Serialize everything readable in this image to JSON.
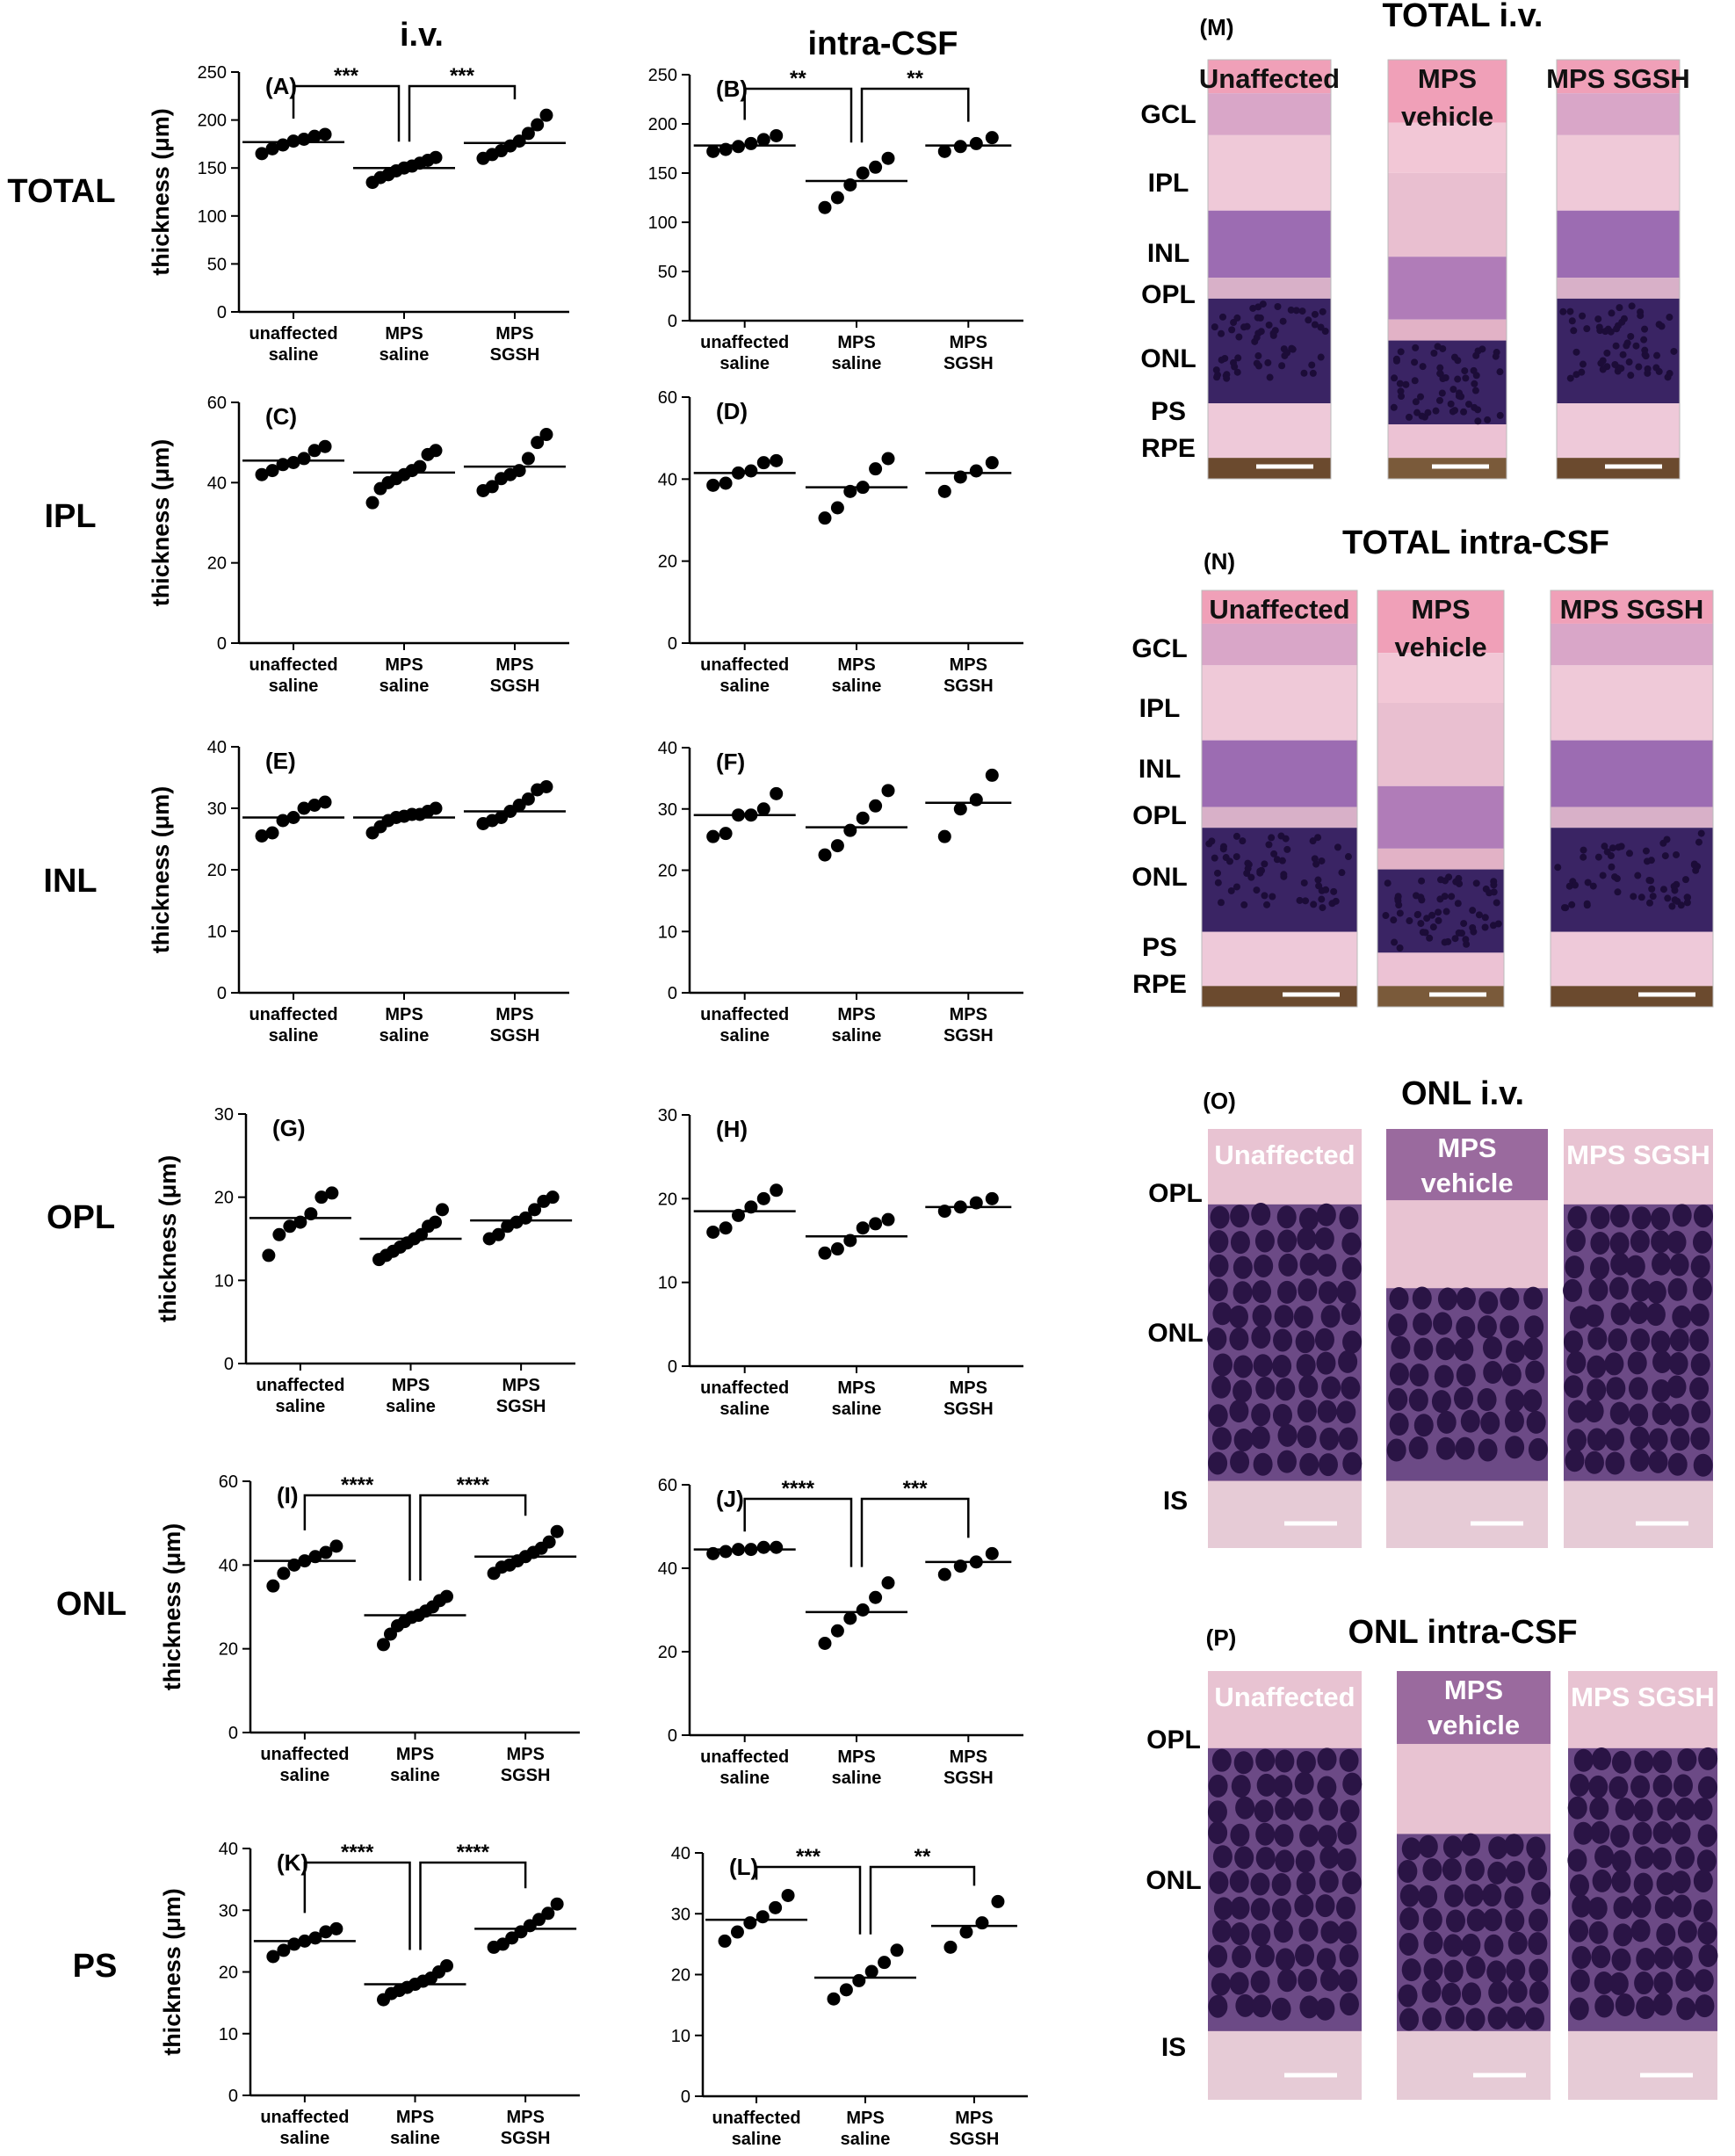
{
  "columns": {
    "iv": "i.v.",
    "csf": "intra-CSF"
  },
  "rows": [
    "TOTAL",
    "IPL",
    "INL",
    "OPL",
    "ONL",
    "PS"
  ],
  "ylabel": "thickness (μm)",
  "categories": [
    [
      "unaffected",
      "saline"
    ],
    [
      "MPS",
      "saline"
    ],
    [
      "MPS",
      "SGSH"
    ]
  ],
  "chart_data": [
    {
      "panel": "(A)",
      "type": "scatter",
      "ylim": [
        0,
        250
      ],
      "ticks": [
        0,
        50,
        100,
        150,
        200,
        250
      ],
      "means": [
        177,
        150,
        176
      ],
      "points": [
        [
          165,
          170,
          174,
          178,
          180,
          183,
          185
        ],
        [
          135,
          140,
          143,
          147,
          150,
          152,
          155,
          158,
          161
        ],
        [
          160,
          164,
          168,
          173,
          178,
          186,
          195,
          205
        ]
      ],
      "sig": [
        "***",
        "***"
      ]
    },
    {
      "panel": "(B)",
      "type": "scatter",
      "ylim": [
        0,
        250
      ],
      "ticks": [
        0,
        50,
        100,
        150,
        200,
        250
      ],
      "means": [
        178,
        142,
        178
      ],
      "points": [
        [
          172,
          174,
          177,
          180,
          184,
          188
        ],
        [
          115,
          125,
          138,
          150,
          156,
          165
        ],
        [
          172,
          177,
          180,
          186
        ]
      ],
      "sig": [
        "**",
        "**"
      ]
    },
    {
      "panel": "(C)",
      "type": "scatter",
      "ylim": [
        0,
        60
      ],
      "ticks": [
        0,
        20,
        40,
        60
      ],
      "means": [
        45.5,
        42.5,
        44
      ],
      "points": [
        [
          42,
          43,
          44.5,
          45,
          46,
          48,
          49
        ],
        [
          35,
          38.5,
          40,
          41,
          42,
          43,
          44,
          47,
          48
        ],
        [
          38,
          39,
          41,
          42,
          43,
          46,
          50,
          52
        ]
      ],
      "sig": []
    },
    {
      "panel": "(D)",
      "type": "scatter",
      "ylim": [
        0,
        60
      ],
      "ticks": [
        0,
        20,
        40,
        60
      ],
      "means": [
        41.5,
        38,
        41.5
      ],
      "points": [
        [
          38.5,
          39,
          41.5,
          42,
          44,
          44.5
        ],
        [
          30.5,
          33,
          37,
          38,
          42.5,
          45
        ],
        [
          37,
          40.5,
          42,
          44
        ]
      ],
      "sig": []
    },
    {
      "panel": "(E)",
      "type": "scatter",
      "ylim": [
        0,
        40
      ],
      "ticks": [
        0,
        10,
        20,
        30,
        40
      ],
      "means": [
        28.5,
        28.5,
        29.5
      ],
      "points": [
        [
          25.5,
          26,
          28,
          28.5,
          30,
          30.5,
          31
        ],
        [
          26,
          27,
          28,
          28.5,
          28.7,
          29,
          29,
          29.5,
          30
        ],
        [
          27.5,
          28,
          28.5,
          29.5,
          30.5,
          31.5,
          33,
          33.5
        ]
      ],
      "sig": []
    },
    {
      "panel": "(F)",
      "type": "scatter",
      "ylim": [
        0,
        40
      ],
      "ticks": [
        0,
        10,
        20,
        30,
        40
      ],
      "means": [
        29,
        27,
        31
      ],
      "points": [
        [
          25.5,
          26,
          29,
          29,
          30,
          32.5
        ],
        [
          22.5,
          24,
          26.5,
          28.5,
          30.5,
          33
        ],
        [
          25.5,
          30,
          31.5,
          35.5
        ]
      ],
      "sig": []
    },
    {
      "panel": "(G)",
      "type": "scatter",
      "ylim": [
        0,
        30
      ],
      "ticks": [
        0,
        10,
        20,
        30
      ],
      "means": [
        17.5,
        15,
        17.2
      ],
      "points": [
        [
          13,
          15.5,
          16.5,
          17,
          18,
          20,
          20.5
        ],
        [
          12.5,
          13,
          13.5,
          14,
          14.5,
          15,
          15.5,
          16.5,
          17,
          18.5
        ],
        [
          15,
          15.5,
          16.5,
          17,
          17.5,
          18.5,
          19.5,
          20
        ]
      ],
      "sig": []
    },
    {
      "panel": "(H)",
      "type": "scatter",
      "ylim": [
        0,
        30
      ],
      "ticks": [
        0,
        10,
        20,
        30
      ],
      "means": [
        18.5,
        15.5,
        19
      ],
      "points": [
        [
          16,
          16.5,
          18,
          19,
          20,
          21
        ],
        [
          13.5,
          14,
          15,
          16.5,
          17,
          17.5
        ],
        [
          18.5,
          19,
          19.5,
          20
        ]
      ],
      "sig": []
    },
    {
      "panel": "(I)",
      "type": "scatter",
      "ylim": [
        0,
        60
      ],
      "ticks": [
        0,
        20,
        40,
        60
      ],
      "means": [
        41,
        28,
        42
      ],
      "points": [
        [
          35,
          38,
          40,
          41,
          42,
          43,
          44.5
        ],
        [
          21,
          23.5,
          25.5,
          26.5,
          27.5,
          28,
          29,
          30,
          31.5,
          32.5
        ],
        [
          38,
          39.5,
          40,
          41,
          42,
          43,
          44,
          45.5,
          48
        ]
      ],
      "sig": [
        "****",
        "****"
      ]
    },
    {
      "panel": "(J)",
      "type": "scatter",
      "ylim": [
        0,
        60
      ],
      "ticks": [
        0,
        20,
        40,
        60
      ],
      "means": [
        44.5,
        29.5,
        41.5
      ],
      "points": [
        [
          43.5,
          44,
          44.5,
          44.5,
          45,
          45
        ],
        [
          22,
          25,
          28,
          30,
          33,
          36.5
        ],
        [
          38.5,
          40.5,
          41.5,
          43.5
        ]
      ],
      "sig": [
        "****",
        "***"
      ]
    },
    {
      "panel": "(K)",
      "type": "scatter",
      "ylim": [
        0,
        40
      ],
      "ticks": [
        0,
        10,
        20,
        30,
        40
      ],
      "means": [
        25,
        18,
        27
      ],
      "points": [
        [
          22.5,
          23.5,
          24.5,
          25,
          25.5,
          26.5,
          27
        ],
        [
          15.5,
          16.5,
          17,
          17.5,
          18,
          18.5,
          19,
          20,
          21
        ],
        [
          24,
          24.5,
          25.5,
          26.5,
          27.5,
          28.5,
          29.5,
          31
        ]
      ],
      "sig": [
        "****",
        "****"
      ]
    },
    {
      "panel": "(L)",
      "type": "scatter",
      "ylim": [
        0,
        40
      ],
      "ticks": [
        0,
        10,
        20,
        30,
        40
      ],
      "means": [
        29,
        19.5,
        28
      ],
      "points": [
        [
          25.5,
          27,
          28.5,
          29.5,
          31,
          33
        ],
        [
          16,
          17.5,
          19,
          20.5,
          22,
          24
        ],
        [
          24.5,
          27,
          28.5,
          32
        ]
      ],
      "sig": [
        "***",
        "**"
      ]
    }
  ],
  "micrographs": [
    {
      "panel": "(M)",
      "title": "TOTAL i.v.",
      "tiles": [
        "Unaffected",
        "MPS vehicle",
        "MPS SGSH"
      ],
      "layers": [
        "GCL",
        "IPL",
        "INL",
        "OPL",
        "ONL",
        "PS",
        "RPE"
      ]
    },
    {
      "panel": "(N)",
      "title": "TOTAL intra-CSF",
      "tiles": [
        "Unaffected",
        "MPS vehicle",
        "MPS SGSH"
      ],
      "layers": [
        "GCL",
        "IPL",
        "INL",
        "OPL",
        "ONL",
        "PS",
        "RPE"
      ]
    },
    {
      "panel": "(O)",
      "title": "ONL i.v.",
      "tiles": [
        "Unaffected",
        "MPS vehicle",
        "MPS SGSH"
      ],
      "layers": [
        "OPL",
        "ONL",
        "IS"
      ]
    },
    {
      "panel": "(P)",
      "title": "ONL intra-CSF",
      "tiles": [
        "Unaffected",
        "MPS vehicle",
        "MPS SGSH"
      ],
      "layers": [
        "OPL",
        "ONL",
        "IS"
      ]
    }
  ],
  "colors": {
    "dot": "#000000",
    "axis": "#000000",
    "he_pink": "#e8b9cc",
    "nuclei": "#2a1445"
  }
}
